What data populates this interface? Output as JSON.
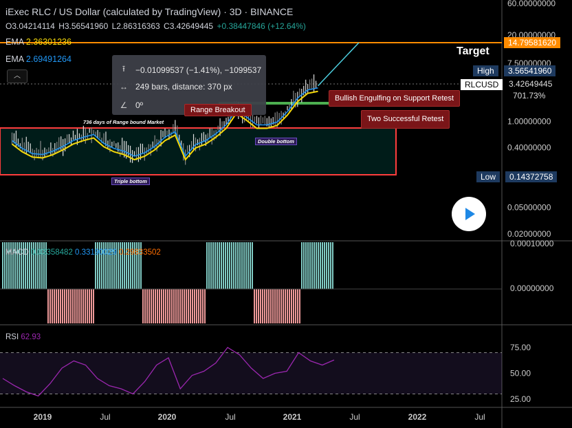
{
  "header": {
    "title": "iExec RLC / US Dollar (calculated by TradingView) · 3D · BINANCE",
    "ohlc": {
      "open": "O3.04214114",
      "high": "H3.56541960",
      "low": "L2.86316363",
      "close": "C3.42649445",
      "change": "+0.38447846 (+12.64%)"
    },
    "ema1": {
      "label": "EMA",
      "value": "2.36301236",
      "color": "#f5d90a"
    },
    "ema2": {
      "label": "EMA",
      "value": "2.69491264",
      "color": "#2196f3"
    }
  },
  "measure_tooltip": {
    "price_change": "−0.01099537 (−1.41%), −1099537",
    "bars": "249 bars, distance: 370 px",
    "angle": "0º"
  },
  "annotations": {
    "target": "Target",
    "bullish": "Bullish Engulfing on Support Retest",
    "two_retest": "Two Successful Retest",
    "range_breakout": "Range Breakout",
    "range_days": "736 days of Range bound Market",
    "triple_bottom": "Triple bottom",
    "double_bottom": "Double bottom"
  },
  "price_axis": {
    "labels": [
      "60.00000000",
      "20.00000000",
      "7.50000000",
      "1.00000000",
      "0.40000000",
      "0.05000000",
      "0.02000000"
    ],
    "target_price": "14.79581620",
    "high_label": "High",
    "high_value": "3.56541960",
    "low_label": "Low",
    "low_value": "0.14372758",
    "symbol": "RLCUSD",
    "last": "3.42649445",
    "pct": "701.73%"
  },
  "macd": {
    "label": "MACD",
    "v1": "0.03358482",
    "v2": "0.33190029",
    "v3": "0.29833502",
    "axis": [
      "0.00010000",
      "0.00000000"
    ]
  },
  "rsi": {
    "label": "RSI",
    "value": "62.93",
    "axis": [
      "75.00",
      "50.00",
      "25.00"
    ]
  },
  "time_axis": [
    "2019",
    "Jul",
    "2020",
    "Jul",
    "2021",
    "Jul",
    "2022",
    "Jul"
  ],
  "colors": {
    "up": "#26a69a",
    "down": "#ef5350",
    "target_line": "#ff8c00",
    "rsi": "#9c27b0",
    "bg": "#000000"
  },
  "chart_data": {
    "type": "candlestick",
    "scale": "log",
    "x_range": [
      "2018-10",
      "2022-09"
    ],
    "y_range": [
      0.018,
      62
    ],
    "price_series": [
      {
        "date": "2018-10",
        "close": 0.55
      },
      {
        "date": "2018-11",
        "close": 0.42
      },
      {
        "date": "2018-12",
        "close": 0.35
      },
      {
        "date": "2019-01",
        "close": 0.34
      },
      {
        "date": "2019-02",
        "close": 0.38
      },
      {
        "date": "2019-03",
        "close": 0.45
      },
      {
        "date": "2019-04",
        "close": 0.55
      },
      {
        "date": "2019-05",
        "close": 0.62
      },
      {
        "date": "2019-06",
        "close": 0.68
      },
      {
        "date": "2019-07",
        "close": 0.5
      },
      {
        "date": "2019-08",
        "close": 0.42
      },
      {
        "date": "2019-09",
        "close": 0.38
      },
      {
        "date": "2019-10",
        "close": 0.32
      },
      {
        "date": "2019-11",
        "close": 0.36
      },
      {
        "date": "2019-12",
        "close": 0.45
      },
      {
        "date": "2020-01",
        "close": 0.62
      },
      {
        "date": "2020-02",
        "close": 0.75
      },
      {
        "date": "2020-03",
        "close": 0.32
      },
      {
        "date": "2020-04",
        "close": 0.48
      },
      {
        "date": "2020-05",
        "close": 0.55
      },
      {
        "date": "2020-06",
        "close": 0.7
      },
      {
        "date": "2020-07",
        "close": 0.95
      },
      {
        "date": "2020-08",
        "close": 1.6
      },
      {
        "date": "2020-09",
        "close": 1.25
      },
      {
        "date": "2020-10",
        "close": 0.95
      },
      {
        "date": "2020-11",
        "close": 0.95
      },
      {
        "date": "2020-12",
        "close": 1.05
      },
      {
        "date": "2021-01",
        "close": 1.5
      },
      {
        "date": "2021-02",
        "close": 2.4
      },
      {
        "date": "2021-03",
        "close": 3.2
      },
      {
        "date": "2021-04",
        "close": 3.43
      }
    ],
    "rsi_values": [
      45,
      38,
      32,
      28,
      40,
      55,
      62,
      58,
      45,
      38,
      35,
      30,
      42,
      58,
      65,
      35,
      48,
      52,
      60,
      75,
      68,
      55,
      45,
      50,
      52,
      70,
      62,
      58,
      62.93
    ]
  }
}
